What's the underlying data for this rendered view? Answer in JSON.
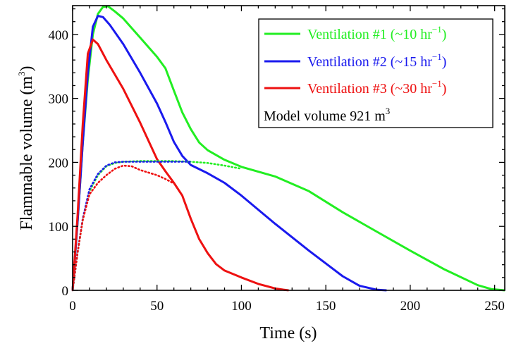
{
  "chart_data": {
    "type": "line",
    "xlabel": "Time (s)",
    "ylabel_text": "Flammable volume (m",
    "ylabel_sup": "3",
    "ylabel_close": ")",
    "xlim": [
      0,
      256
    ],
    "ylim": [
      0,
      445
    ],
    "x_ticks": [
      0,
      50,
      100,
      150,
      200,
      250
    ],
    "y_ticks": [
      0,
      100,
      200,
      300,
      400
    ],
    "grid": false,
    "legend_position": "top-right",
    "legend_note": {
      "text": "Model volume 921 m",
      "sup": "3"
    },
    "series": [
      {
        "name": "Ventilation #1 (~10 hr",
        "name_sup": "−1",
        "name_close": ")",
        "color": "#22ee22",
        "line_style": "solid",
        "points": [
          [
            0,
            0
          ],
          [
            3,
            110
          ],
          [
            6,
            230
          ],
          [
            9,
            330
          ],
          [
            12,
            400
          ],
          [
            15,
            432
          ],
          [
            18,
            443
          ],
          [
            21,
            444
          ],
          [
            25,
            436
          ],
          [
            30,
            425
          ],
          [
            40,
            395
          ],
          [
            50,
            365
          ],
          [
            55,
            347
          ],
          [
            60,
            312
          ],
          [
            65,
            278
          ],
          [
            70,
            252
          ],
          [
            75,
            231
          ],
          [
            80,
            219
          ],
          [
            90,
            204
          ],
          [
            100,
            193
          ],
          [
            120,
            178
          ],
          [
            140,
            155
          ],
          [
            160,
            122
          ],
          [
            180,
            92
          ],
          [
            200,
            62
          ],
          [
            220,
            33
          ],
          [
            240,
            8
          ],
          [
            248,
            2
          ],
          [
            256,
            0
          ]
        ]
      },
      {
        "name": "Ventilation #2 (~15 hr",
        "name_sup": "−1",
        "name_close": ")",
        "color": "#1a1aee",
        "line_style": "solid",
        "points": [
          [
            0,
            0
          ],
          [
            3,
            110
          ],
          [
            6,
            230
          ],
          [
            9,
            340
          ],
          [
            12,
            412
          ],
          [
            15,
            429
          ],
          [
            18,
            427
          ],
          [
            22,
            415
          ],
          [
            30,
            385
          ],
          [
            40,
            340
          ],
          [
            50,
            292
          ],
          [
            55,
            263
          ],
          [
            60,
            232
          ],
          [
            65,
            210
          ],
          [
            70,
            196
          ],
          [
            80,
            183
          ],
          [
            90,
            168
          ],
          [
            100,
            148
          ],
          [
            120,
            104
          ],
          [
            140,
            62
          ],
          [
            160,
            22
          ],
          [
            170,
            7
          ],
          [
            180,
            1
          ],
          [
            186,
            0
          ]
        ]
      },
      {
        "name": "Ventilation #3 (~30 hr",
        "name_sup": "−1",
        "name_close": ")",
        "color": "#ee1111",
        "line_style": "solid",
        "points": [
          [
            0,
            0
          ],
          [
            3,
            120
          ],
          [
            6,
            260
          ],
          [
            9,
            370
          ],
          [
            12,
            392
          ],
          [
            15,
            385
          ],
          [
            20,
            360
          ],
          [
            30,
            315
          ],
          [
            40,
            262
          ],
          [
            50,
            205
          ],
          [
            55,
            186
          ],
          [
            60,
            168
          ],
          [
            65,
            148
          ],
          [
            70,
            112
          ],
          [
            75,
            80
          ],
          [
            80,
            58
          ],
          [
            85,
            41
          ],
          [
            90,
            31
          ],
          [
            100,
            20
          ],
          [
            110,
            10
          ],
          [
            120,
            3
          ],
          [
            125,
            1
          ],
          [
            128,
            0
          ]
        ]
      },
      {
        "color": "#22ee22",
        "line_style": "dotted",
        "points": [
          [
            0,
            0
          ],
          [
            3,
            60
          ],
          [
            6,
            110
          ],
          [
            10,
            155
          ],
          [
            15,
            180
          ],
          [
            20,
            194
          ],
          [
            25,
            199
          ],
          [
            30,
            201
          ],
          [
            40,
            202
          ],
          [
            60,
            202
          ],
          [
            70,
            201
          ],
          [
            80,
            199
          ],
          [
            90,
            195
          ],
          [
            100,
            190
          ]
        ]
      },
      {
        "color": "#1a1aee",
        "line_style": "dotted",
        "points": [
          [
            0,
            0
          ],
          [
            3,
            60
          ],
          [
            6,
            112
          ],
          [
            10,
            158
          ],
          [
            15,
            182
          ],
          [
            20,
            195
          ],
          [
            25,
            200
          ],
          [
            30,
            201
          ],
          [
            40,
            201
          ],
          [
            50,
            201
          ],
          [
            60,
            201
          ],
          [
            70,
            201
          ]
        ]
      },
      {
        "color": "#ee1111",
        "line_style": "dotted",
        "points": [
          [
            0,
            0
          ],
          [
            3,
            60
          ],
          [
            6,
            110
          ],
          [
            10,
            150
          ],
          [
            15,
            168
          ],
          [
            20,
            180
          ],
          [
            25,
            190
          ],
          [
            30,
            195
          ],
          [
            35,
            194
          ],
          [
            40,
            188
          ],
          [
            50,
            180
          ],
          [
            55,
            174
          ],
          [
            60,
            167
          ]
        ]
      }
    ]
  }
}
